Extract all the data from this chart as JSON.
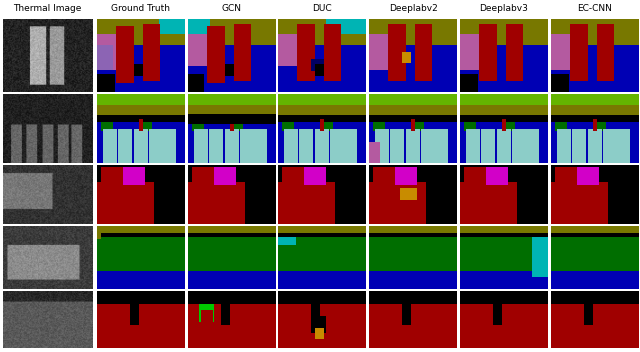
{
  "col_labels": [
    "Thermal Image",
    "Ground Truth",
    "GCN",
    "DUC",
    "Deeplabv2",
    "Deeplabv3",
    "EC-CNN"
  ],
  "fig_width": 6.4,
  "fig_height": 3.52,
  "header_fontsize": 6.5,
  "bg_color": "#ffffff",
  "colors": {
    "BLUE": [
      0,
      0,
      180
    ],
    "DARK_BLUE": [
      0,
      0,
      100
    ],
    "RED": [
      160,
      0,
      0
    ],
    "DARK_RED": [
      100,
      0,
      0
    ],
    "GREEN": [
      0,
      110,
      0
    ],
    "OLIVE": [
      120,
      120,
      0
    ],
    "MAGENTA": [
      210,
      0,
      200
    ],
    "CYAN": [
      0,
      180,
      180
    ],
    "LIGHT_CYAN": [
      140,
      205,
      200
    ],
    "BLACK": [
      0,
      0,
      0
    ],
    "YELLOW": [
      200,
      170,
      0
    ],
    "LIME": [
      100,
      180,
      0
    ],
    "ORANGE": [
      200,
      140,
      0
    ],
    "PINK": [
      180,
      90,
      160
    ],
    "BRIGHT_GREEN": [
      0,
      200,
      0
    ],
    "TEAL": [
      0,
      120,
      100
    ],
    "LAVENDER": [
      140,
      100,
      180
    ]
  }
}
